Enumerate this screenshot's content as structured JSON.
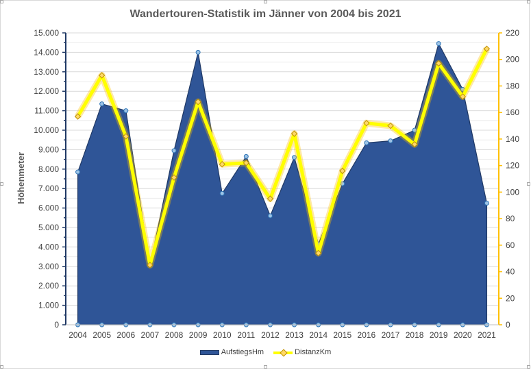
{
  "chart_data": {
    "type": "area",
    "title": "Wandertouren-Statistik im Jänner von 2004 bis 2021",
    "ylabel": "Höhenmeter",
    "xlabel": "",
    "y2label": "",
    "categories": [
      "2004",
      "2005",
      "2006",
      "2007",
      "2008",
      "2009",
      "2010",
      "2011",
      "2012",
      "2013",
      "2014",
      "2015",
      "2016",
      "2017",
      "2018",
      "2019",
      "2020",
      "2021"
    ],
    "ylim": [
      0,
      15000
    ],
    "y2lim": [
      0,
      220
    ],
    "y_ticks": [
      "0",
      "1.000",
      "2.000",
      "3.000",
      "4.000",
      "5.000",
      "6.000",
      "7.000",
      "8.000",
      "9.000",
      "10.000",
      "11.000",
      "12.000",
      "13.000",
      "14.000",
      "15.000"
    ],
    "y2_ticks": [
      "0",
      "20",
      "40",
      "60",
      "80",
      "100",
      "120",
      "140",
      "160",
      "180",
      "200",
      "220"
    ],
    "grid": true,
    "legend_position": "bottom",
    "series": [
      {
        "name": "AufstiegsHm",
        "type": "area",
        "axis": "left",
        "color": "#2f5597",
        "values": [
          7850,
          11350,
          11000,
          3050,
          8950,
          14000,
          6750,
          8650,
          5600,
          8600,
          4150,
          7250,
          9350,
          9450,
          10000,
          14450,
          12100,
          6250
        ]
      },
      {
        "name": "DistanzKm",
        "type": "line",
        "axis": "right",
        "color": "#ffff00",
        "values": [
          157,
          188,
          142,
          45,
          111,
          168,
          121,
          122,
          95,
          144,
          54,
          116,
          152,
          150,
          136,
          197,
          172,
          208
        ]
      }
    ]
  }
}
